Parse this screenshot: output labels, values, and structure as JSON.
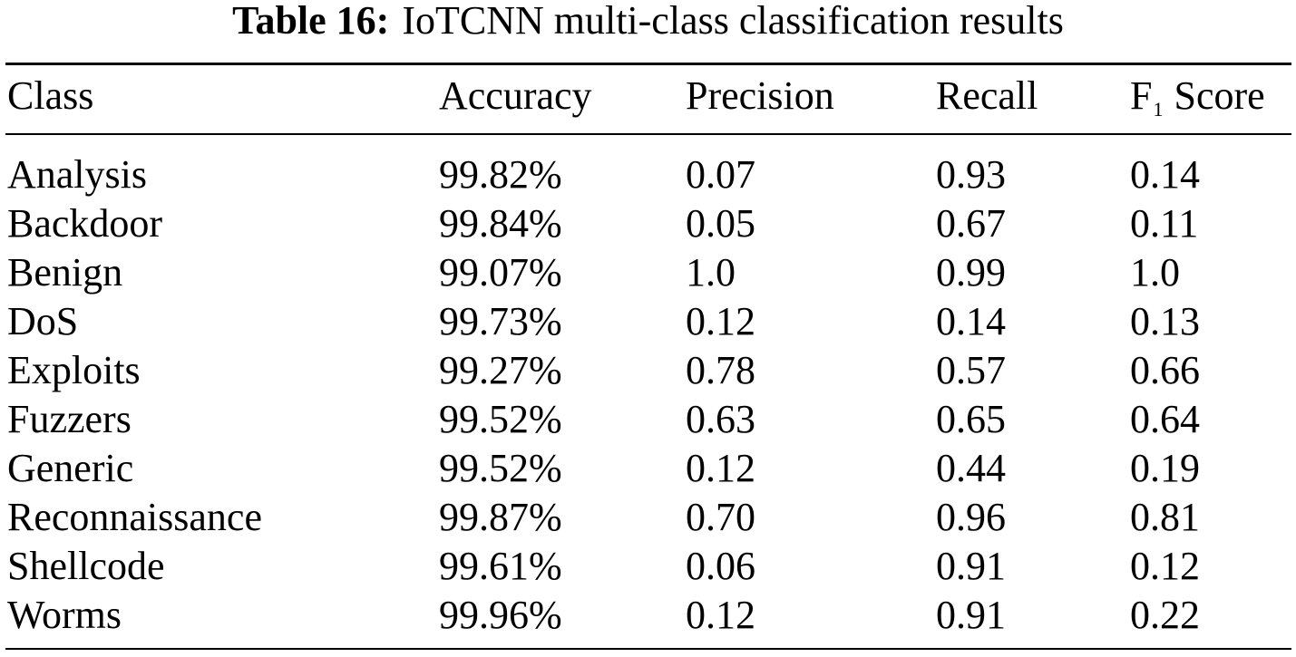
{
  "caption": {
    "label": "Table 16:",
    "text": "IoTCNN multi-class classification results"
  },
  "table": {
    "headers": {
      "class": "Class",
      "accuracy": "Accuracy",
      "precision": "Precision",
      "recall": "Recall",
      "f1_letter": "F",
      "f1_sub": "1",
      "f1_rest": "Score"
    },
    "rows": [
      {
        "class": "Analysis",
        "accuracy": "99.82%",
        "precision": "0.07",
        "recall": "0.93",
        "f1": "0.14"
      },
      {
        "class": "Backdoor",
        "accuracy": "99.84%",
        "precision": "0.05",
        "recall": "0.67",
        "f1": "0.11"
      },
      {
        "class": "Benign",
        "accuracy": "99.07%",
        "precision": "1.0",
        "recall": "0.99",
        "f1": "1.0"
      },
      {
        "class": "DoS",
        "accuracy": "99.73%",
        "precision": "0.12",
        "recall": "0.14",
        "f1": "0.13"
      },
      {
        "class": "Exploits",
        "accuracy": "99.27%",
        "precision": "0.78",
        "recall": "0.57",
        "f1": "0.66"
      },
      {
        "class": "Fuzzers",
        "accuracy": "99.52%",
        "precision": "0.63",
        "recall": "0.65",
        "f1": "0.64"
      },
      {
        "class": "Generic",
        "accuracy": "99.52%",
        "precision": "0.12",
        "recall": "0.44",
        "f1": "0.19"
      },
      {
        "class": "Reconnaissance",
        "accuracy": "99.87%",
        "precision": "0.70",
        "recall": "0.96",
        "f1": "0.81"
      },
      {
        "class": "Shellcode",
        "accuracy": "99.61%",
        "precision": "0.06",
        "recall": "0.91",
        "f1": "0.12"
      },
      {
        "class": "Worms",
        "accuracy": "99.96%",
        "precision": "0.12",
        "recall": "0.91",
        "f1": "0.22"
      }
    ]
  }
}
